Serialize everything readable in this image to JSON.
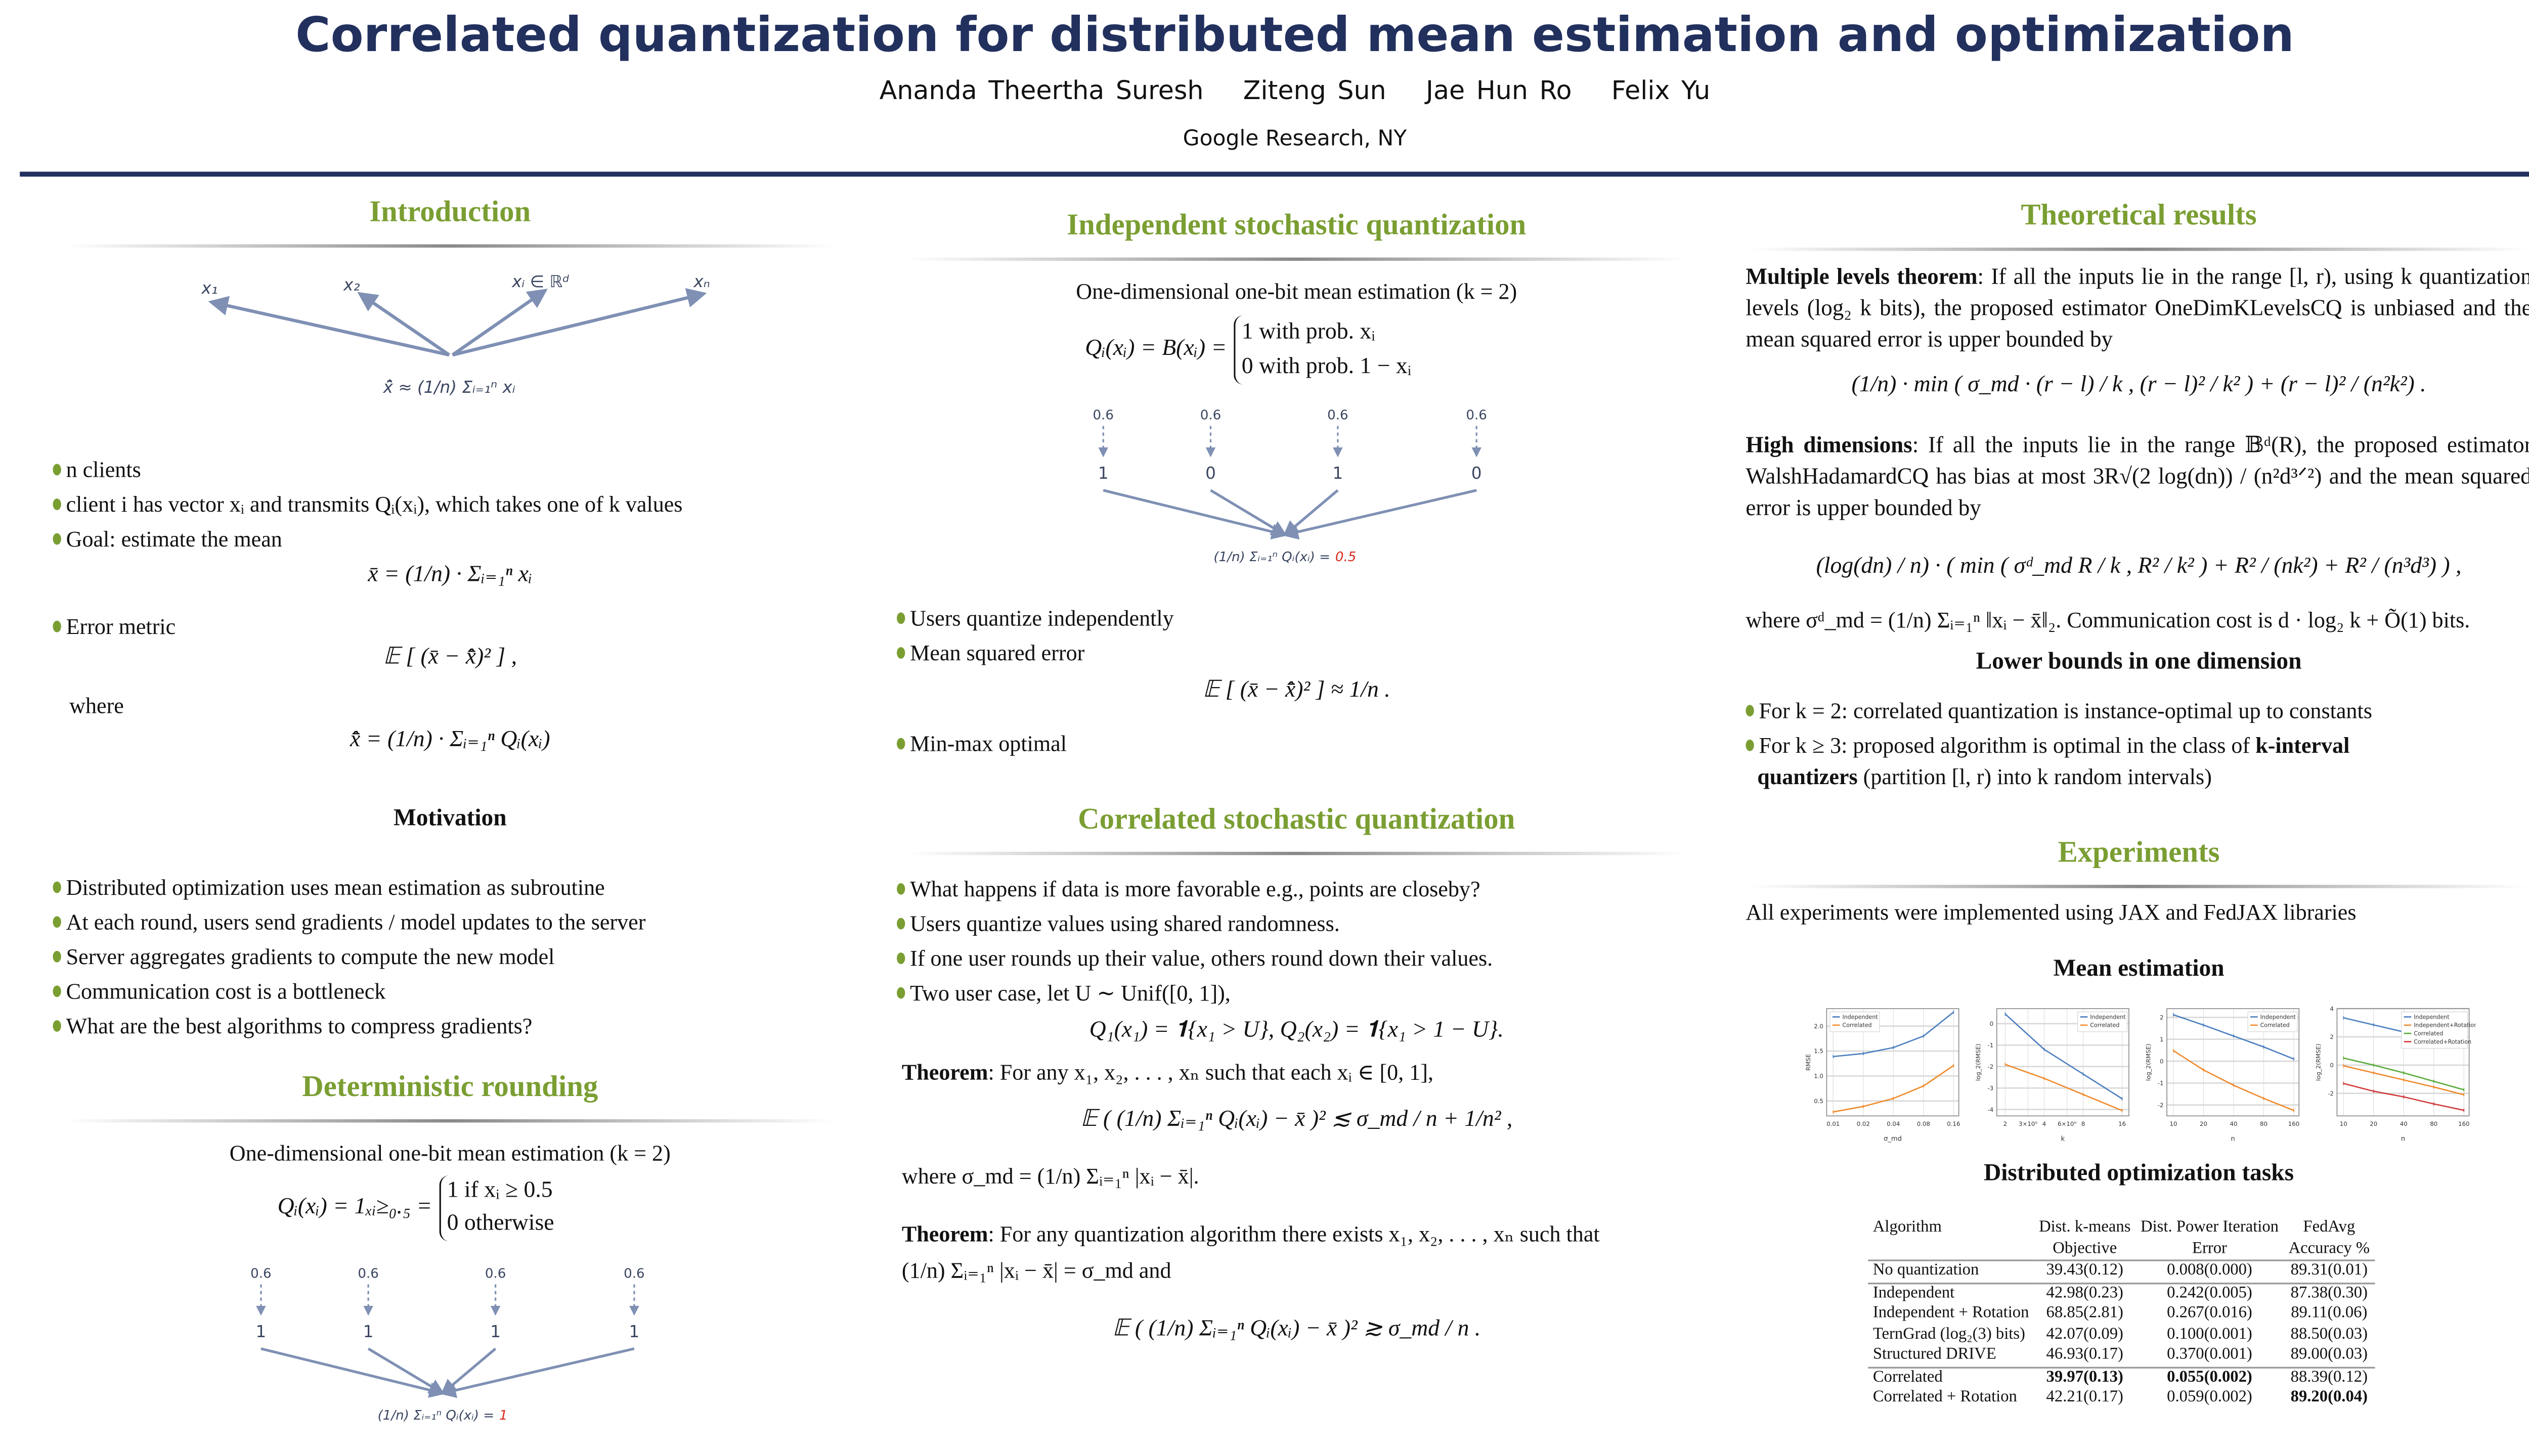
{
  "header": {
    "title": "Correlated quantization for distributed mean estimation and optimization",
    "authors": [
      "Ananda Theertha Suresh",
      "Ziteng Sun",
      "Jae Hun Ro",
      "Felix Yu"
    ],
    "affiliation": "Google Research, NY"
  },
  "colors": {
    "title": "#22305e",
    "section": "#7a9e32",
    "arrow": "#7f90b4",
    "highlight": "#d62b1e"
  },
  "intro": {
    "title": "Introduction",
    "diagram": {
      "labels": [
        "x₁",
        "x₂",
        "xᵢ ∈ ℝᵈ",
        "xₙ"
      ],
      "formula": "x̄̂ ≈ (1/n) Σᵢ₌₁ⁿ xᵢ"
    },
    "bullets": [
      "n clients",
      "client i has vector xᵢ and transmits Qᵢ(xᵢ), which takes one of k values",
      "Goal: estimate the mean",
      "Error metric"
    ],
    "mean_formula": "x̄ = (1/n) · Σᵢ₌₁ⁿ xᵢ",
    "error_formula": "𝔼 [ (x̄ − x̄̂)² ] ,",
    "where": "where",
    "est_formula": "x̄̂ = (1/n) · Σᵢ₌₁ⁿ Qᵢ(xᵢ)"
  },
  "motivation": {
    "title": "Motivation",
    "bullets": [
      "Distributed optimization uses mean estimation as subroutine",
      "At each round, users send gradients / model updates to the server",
      "Server aggregates gradients to compute the new model",
      "Communication cost is a bottleneck",
      "What are the best algorithms to compress gradients?"
    ]
  },
  "deterministic": {
    "title": "Deterministic rounding",
    "subtitle": "One-dimensional one-bit mean estimation (k = 2)",
    "formula_lhs": "Qᵢ(xᵢ) = 1ₓᵢ≥₀.₅ =",
    "case1": "1 if xᵢ ≥ 0.5",
    "case2": "0 otherwise",
    "inputs": [
      "0.6",
      "0.6",
      "0.6",
      "0.6"
    ],
    "outputs": [
      "1",
      "1",
      "1",
      "1"
    ],
    "result_lhs": "(1/n) Σᵢ₌₁ⁿ Qᵢ(xᵢ) =",
    "result_value": "1"
  },
  "independent": {
    "title": "Independent stochastic quantization",
    "subtitle": "One-dimensional one-bit mean estimation (k = 2)",
    "formula_lhs": "Qᵢ(xᵢ) = B(xᵢ) =",
    "case1": "1 with prob.  xᵢ",
    "case2": "0 with prob.  1 − xᵢ",
    "inputs": [
      "0.6",
      "0.6",
      "0.6",
      "0.6"
    ],
    "outputs": [
      "1",
      "0",
      "1",
      "0"
    ],
    "result_lhs": "(1/n) Σᵢ₌₁ⁿ Qᵢ(xᵢ) =",
    "result_value": "0.5",
    "bullets": [
      "Users quantize independently",
      "Mean squared error",
      "Min-max optimal"
    ],
    "mse_formula": "𝔼 [ (x̄ − x̄̂)² ] ≈ 1/n ."
  },
  "correlated": {
    "title": "Correlated stochastic quantization",
    "bullets": [
      "What happens if data is more favorable e.g., points are closeby?",
      "Users quantize values using shared randomness.",
      "If one user rounds up their value, others round down their values.",
      "Two user case, let U ∼ Unif([0, 1]),"
    ],
    "two_user_formula": "Q₁(x₁) = 𝟏{x₁ > U},     Q₂(x₂) = 𝟏{x₁ > 1 − U}.",
    "theorem1_label": "Theorem",
    "theorem1_text": ": For any x₁, x₂, . . . , xₙ such that each xᵢ ∈ [0, 1],",
    "theorem1_formula": "𝔼 ( (1/n) Σᵢ₌₁ⁿ Qᵢ(xᵢ) − x̄ )² ≲ σ_md / n + 1/n² ,",
    "theorem1_where": "where σ_md = (1/n) Σᵢ₌₁ⁿ |xᵢ − x̄|.",
    "theorem2_label": "Theorem",
    "theorem2_text": ": For any quantization algorithm there exists x₁, x₂, . . . , xₙ such that",
    "theorem2_text2": "(1/n) Σᵢ₌₁ⁿ |xᵢ − x̄| = σ_md and",
    "theorem2_formula": "𝔼 ( (1/n) Σᵢ₌₁ⁿ Qᵢ(xᵢ) − x̄ )² ≳ σ_md / n ."
  },
  "theory": {
    "title": "Theoretical results",
    "multi_label": "Multiple levels theorem",
    "multi_text": ": If all the inputs lie in the range [l, r), using k quantization levels (log₂ k bits), the proposed estimator OneDimKLevelsCQ is unbiased and the mean squared error is upper bounded by",
    "multi_formula": "(1/n) · min ( σ_md · (r − l) / k ,  (r − l)² / k² ) + (r − l)² / (n²k²) .",
    "high_label": "High dimensions",
    "high_text": ": If all the inputs lie in the range 𝔹ᵈ(R), the proposed estimator WalshHadamardCQ has bias at most 3R√(2 log(dn)) / (n²d³ᐟ²) and the mean squared error is upper bounded by",
    "high_formula": "(log(dn) / n) · ( min ( σᵈ_md R / k ,  R² / k² ) + R² / (nk²) + R² / (n³d³) ) ,",
    "where_text": "where σᵈ_md = (1/n) Σᵢ₌₁ⁿ ‖xᵢ − x̄‖₂. Communication cost is d · log₂ k + Õ(1) bits.",
    "lower_title": "Lower bounds in one dimension",
    "lower_b1": "For k = 2: correlated quantization is instance-optimal up to constants",
    "lower_b2a": "For k ≥ 3: proposed algorithm is optimal in the class of ",
    "lower_b2b": "k-interval",
    "lower_b2c": "quantizers",
    "lower_b2d": " (partition [l, r) into k random intervals)"
  },
  "experiments": {
    "title": "Experiments",
    "intro": "All experiments were implemented using JAX and FedJAX libraries",
    "mean_title": "Mean estimation",
    "dist_title": "Distributed optimization tasks",
    "table": {
      "headers": [
        [
          "Algorithm",
          ""
        ],
        [
          "Dist. k-means",
          "Objective"
        ],
        [
          "Dist. Power Iteration",
          "Error"
        ],
        [
          "FedAvg",
          "Accuracy %"
        ]
      ],
      "rows": [
        {
          "cells": [
            "No quantization",
            "39.43(0.12)",
            "0.008(0.000)",
            "89.31(0.01)"
          ],
          "bold": []
        },
        {
          "cells": [
            "Independent",
            "42.98(0.23)",
            "0.242(0.005)",
            "87.38(0.30)"
          ],
          "bold": []
        },
        {
          "cells": [
            "Independent + Rotation",
            "68.85(2.81)",
            "0.267(0.016)",
            "89.11(0.06)"
          ],
          "bold": []
        },
        {
          "cells": [
            "TernGrad (log₂(3) bits)",
            "42.07(0.09)",
            "0.100(0.001)",
            "88.50(0.03)"
          ],
          "bold": []
        },
        {
          "cells": [
            "Structured DRIVE",
            "46.93(0.17)",
            "0.370(0.001)",
            "89.00(0.03)"
          ],
          "bold": []
        },
        {
          "cells": [
            "Correlated",
            "39.97(0.13)",
            "0.055(0.002)",
            "88.39(0.12)"
          ],
          "bold": [
            1,
            2
          ]
        },
        {
          "cells": [
            "Correlated + Rotation",
            "42.21(0.17)",
            "0.059(0.002)",
            "89.20(0.04)"
          ],
          "bold": [
            3
          ]
        }
      ]
    }
  },
  "chart_data": [
    {
      "type": "line",
      "xlabel": "σ_md",
      "ylabel": "RMSE",
      "xscale": "log",
      "x": [
        0.01,
        0.02,
        0.04,
        0.08,
        0.16
      ],
      "xticks": [
        "0.01",
        "0.02",
        "0.04",
        "0.08",
        "0.16"
      ],
      "ylim": [
        0.2,
        2.35
      ],
      "yticks": [
        0.5,
        1.0,
        1.5,
        2.0
      ],
      "yticklabels": [
        "0.5",
        "1.0",
        "1.5",
        "2.0"
      ],
      "grid": true,
      "legend": "top-left",
      "series": [
        {
          "name": "Independent",
          "color": "#4c7fbf",
          "values": [
            1.39,
            1.45,
            1.57,
            1.8,
            2.28
          ]
        },
        {
          "name": "Correlated",
          "color": "#f08a2c",
          "values": [
            0.28,
            0.39,
            0.55,
            0.8,
            1.21
          ]
        }
      ]
    },
    {
      "type": "line",
      "xlabel": "k",
      "ylabel": "log_2(RMSE)",
      "xscale": "log",
      "x": [
        2,
        4,
        8,
        16
      ],
      "xticks": [
        "2",
        "3×10⁰",
        "4",
        "6×10⁰",
        "8",
        "16"
      ],
      "xtickvals": [
        2,
        3,
        4,
        6,
        8,
        16
      ],
      "ylim": [
        -4.3,
        0.7
      ],
      "yticks": [
        0,
        -1,
        -2,
        -3,
        -4
      ],
      "yticklabels": [
        "0",
        "-1",
        "-2",
        "-3",
        "-4"
      ],
      "grid": true,
      "legend": "top-right",
      "series": [
        {
          "name": "Independent",
          "color": "#4c7fbf",
          "values": [
            0.45,
            -1.2,
            -2.35,
            -3.5
          ]
        },
        {
          "name": "Correlated",
          "color": "#f08a2c",
          "values": [
            -1.9,
            -2.55,
            -3.3,
            -4.05
          ]
        }
      ]
    },
    {
      "type": "line",
      "xlabel": "n",
      "ylabel": "log_2(RMSE)",
      "xscale": "log",
      "x": [
        10,
        20,
        40,
        80,
        160
      ],
      "xticks": [
        "10",
        "20",
        "40",
        "80",
        "160"
      ],
      "ylim": [
        -2.5,
        2.4
      ],
      "yticks": [
        2,
        1,
        0,
        -1,
        -2
      ],
      "yticklabels": [
        "2",
        "1",
        "0",
        "-1",
        "-2"
      ],
      "grid": true,
      "legend": "top-right",
      "series": [
        {
          "name": "Independent",
          "color": "#4c7fbf",
          "values": [
            2.12,
            1.65,
            1.15,
            0.65,
            0.1
          ]
        },
        {
          "name": "Correlated",
          "color": "#f08a2c",
          "values": [
            0.48,
            -0.4,
            -1.1,
            -1.7,
            -2.25
          ]
        }
      ]
    },
    {
      "type": "line",
      "xlabel": "n",
      "ylabel": "log_2(RMSE)",
      "xscale": "log",
      "x": [
        10,
        20,
        40,
        80,
        160
      ],
      "xticks": [
        "10",
        "20",
        "40",
        "80",
        "160"
      ],
      "ylim": [
        -3.6,
        4.0
      ],
      "yticks": [
        4,
        2,
        0,
        -2
      ],
      "yticklabels": [
        "4",
        "2",
        "0",
        "-2"
      ],
      "grid": true,
      "legend": "top-right",
      "series": [
        {
          "name": "Independent",
          "color": "#4c7fbf",
          "values": [
            3.35,
            2.85,
            2.35,
            1.85,
            1.3
          ]
        },
        {
          "name": "Independent+Rotation",
          "color": "#f08a2c",
          "values": [
            -0.05,
            -0.55,
            -1.05,
            -1.55,
            -2.1
          ]
        },
        {
          "name": "Correlated",
          "color": "#5aab3c",
          "values": [
            0.5,
            0.0,
            -0.55,
            -1.15,
            -1.75
          ]
        },
        {
          "name": "Correlated+Rotation",
          "color": "#d13b3b",
          "values": [
            -1.3,
            -1.85,
            -2.25,
            -2.75,
            -3.2
          ]
        }
      ]
    }
  ]
}
